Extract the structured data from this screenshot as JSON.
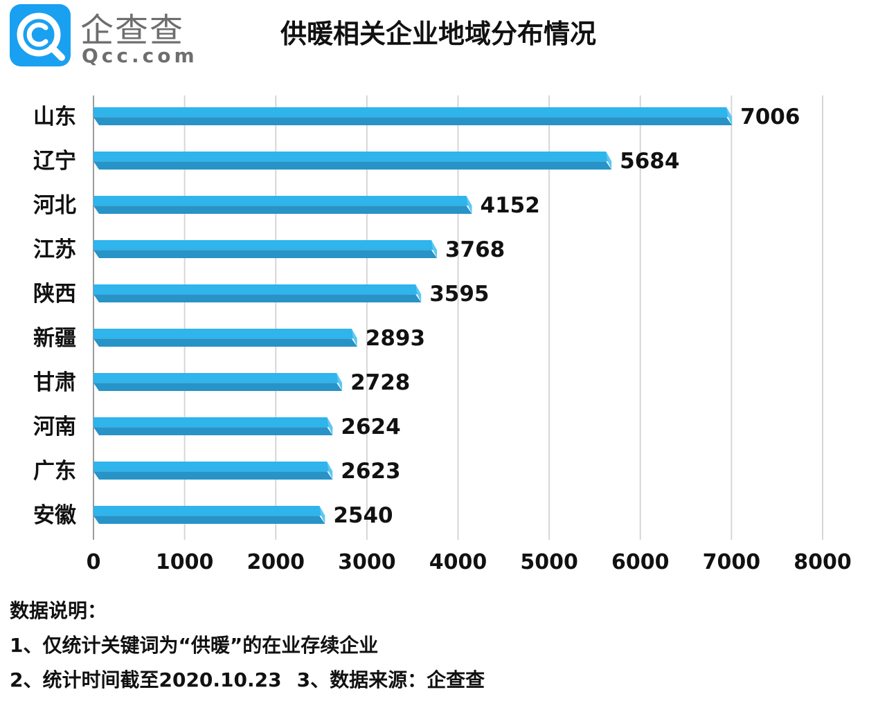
{
  "logo": {
    "name_cn": "企查查",
    "name_en": "Qcc.com",
    "icon": "qcc-magnifier-icon"
  },
  "chart_data": {
    "type": "bar",
    "orientation": "horizontal",
    "title": "供暖相关企业地域分布情况",
    "categories": [
      "山东",
      "辽宁",
      "河北",
      "江苏",
      "陕西",
      "新疆",
      "甘肃",
      "河南",
      "广东",
      "安徽"
    ],
    "values": [
      7006,
      5684,
      4152,
      3768,
      3595,
      2893,
      2728,
      2624,
      2623,
      2540
    ],
    "xlim": [
      0,
      8000
    ],
    "xticks": [
      0,
      1000,
      2000,
      3000,
      4000,
      5000,
      6000,
      7000,
      8000
    ],
    "grid": true,
    "legend": "none",
    "bar_color": "#2fb4ec",
    "bar_shade_color": "#2793c6"
  },
  "notes": {
    "heading": "数据说明：",
    "line1": "1、仅统计关键词为“供暖”的在业存续企业",
    "line2a": "2、统计时间截至2020.10.23",
    "line2b": "3、数据来源：企查查"
  }
}
